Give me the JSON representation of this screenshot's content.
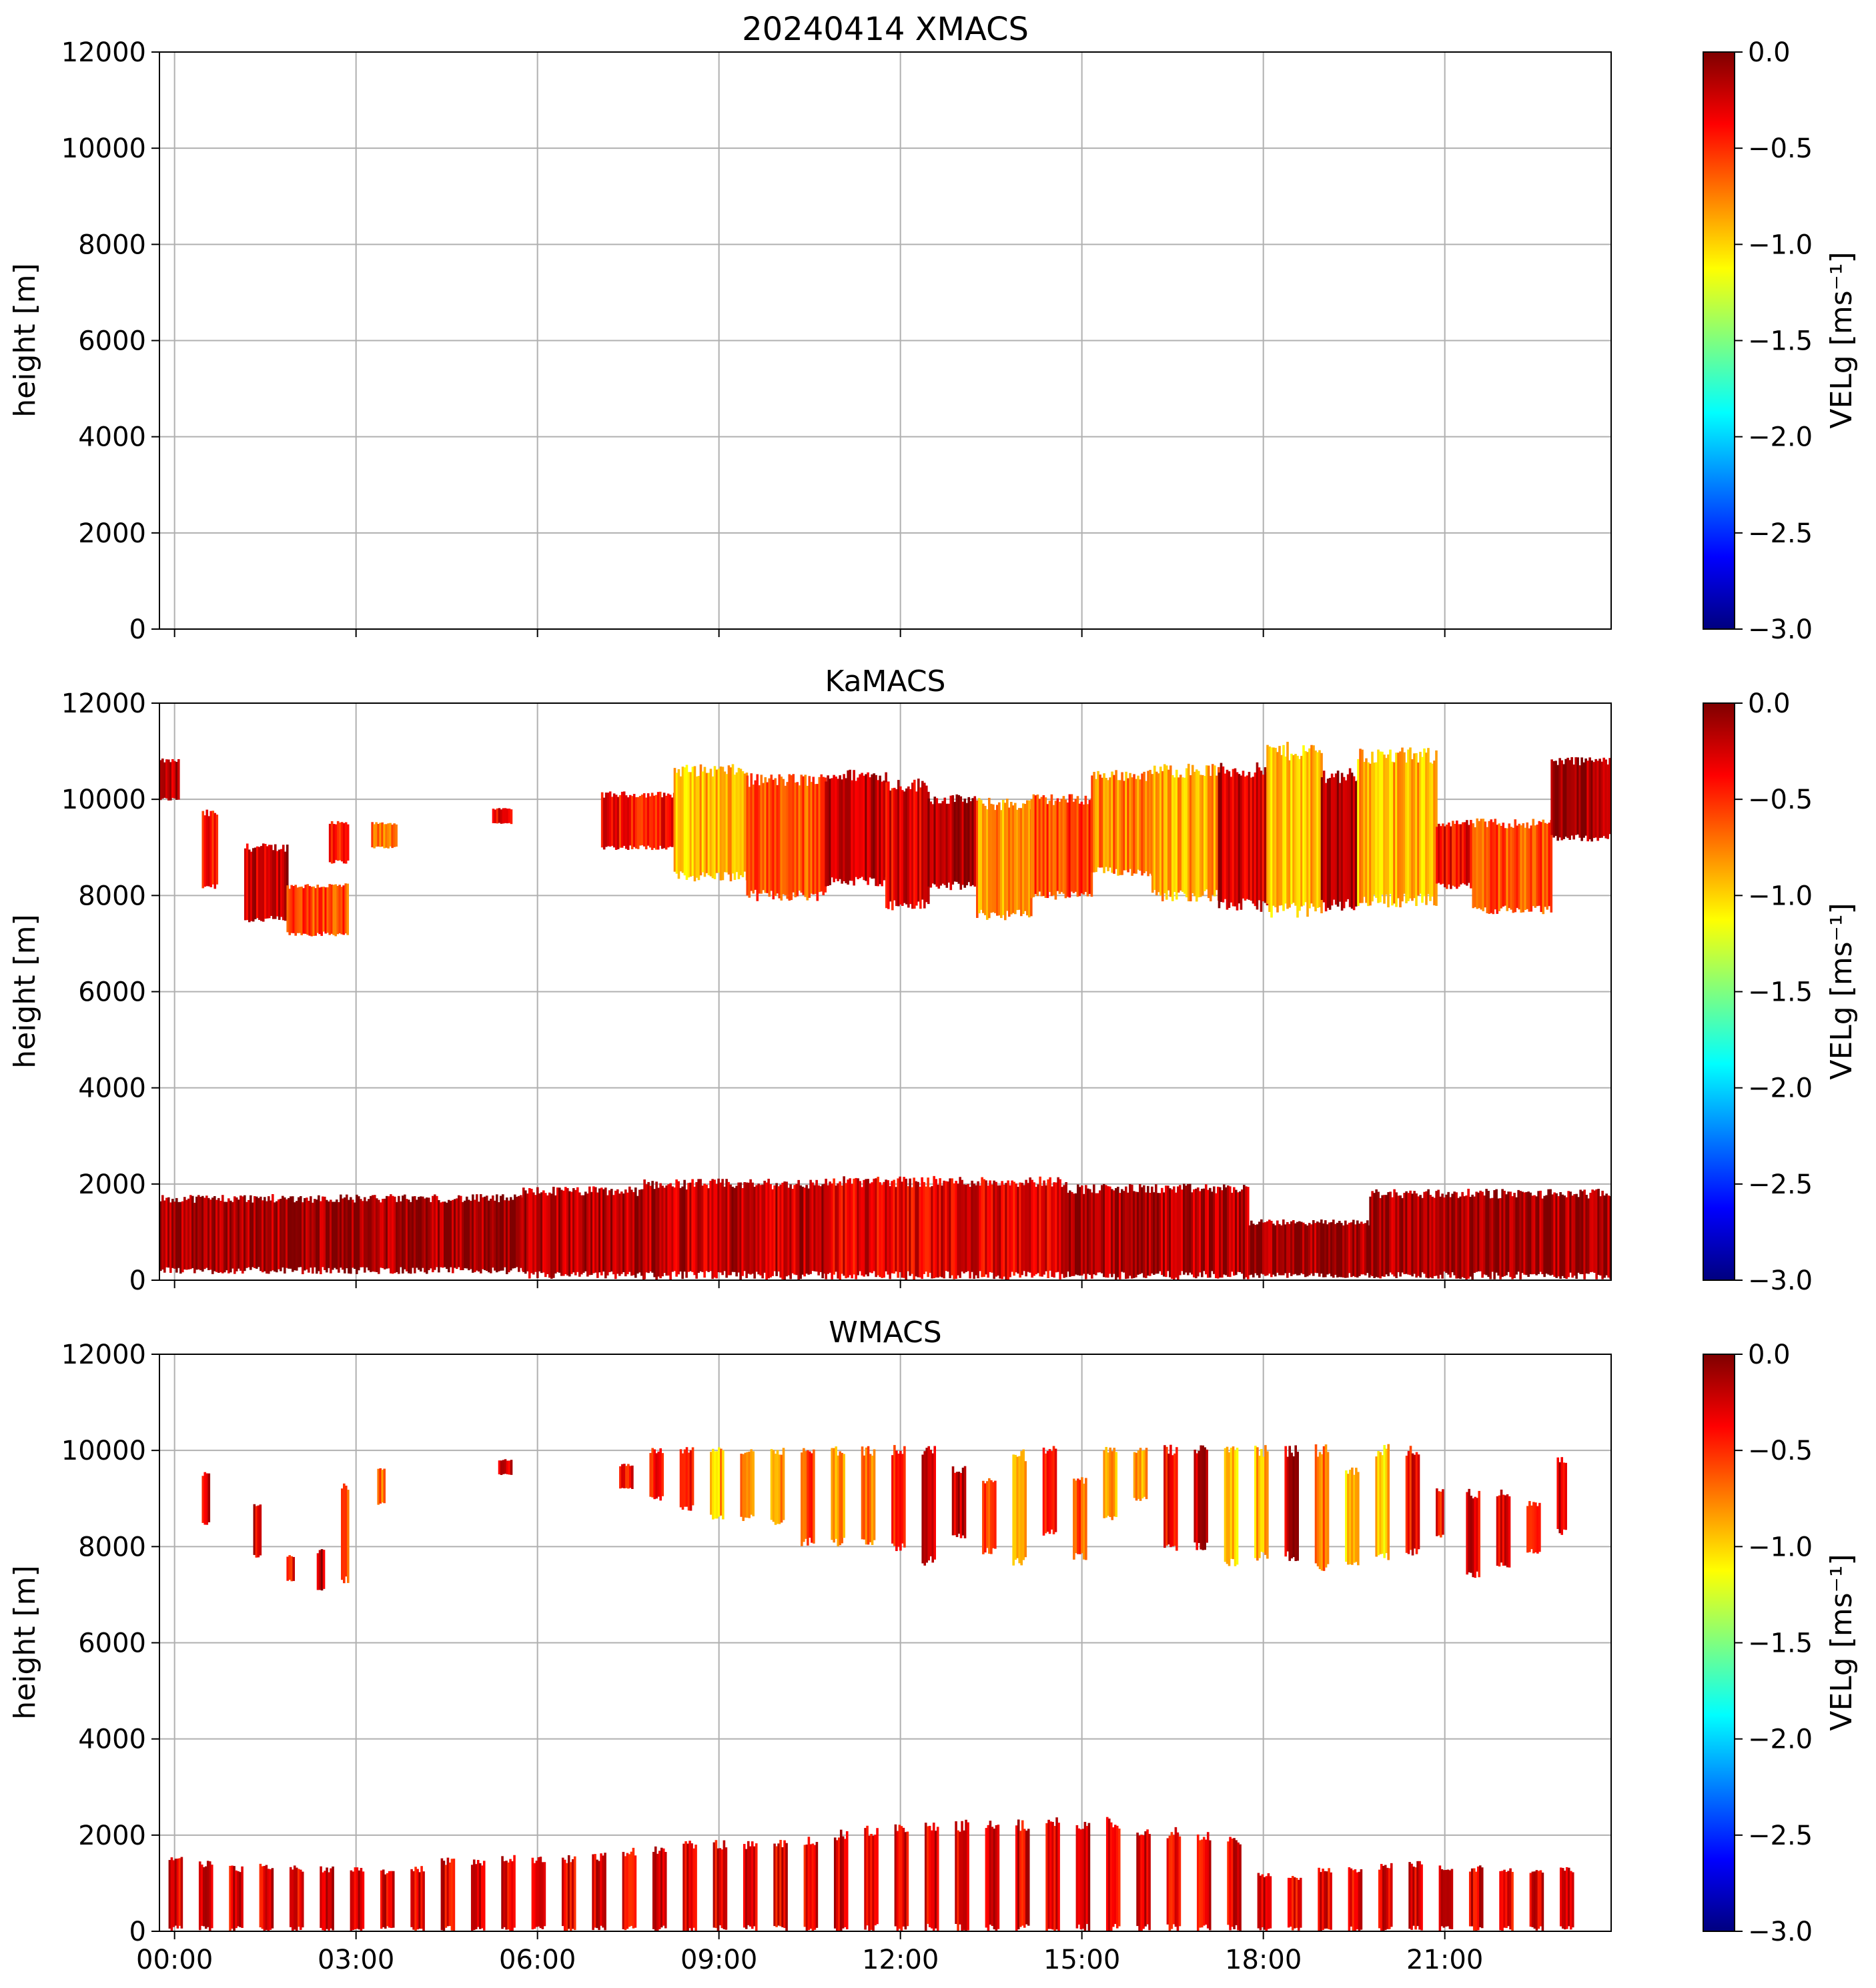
{
  "colors": {
    "jet": [
      "#00007f",
      "#0000ff",
      "#007fff",
      "#00ffff",
      "#7fff7f",
      "#ffff00",
      "#ff7f00",
      "#ff0000",
      "#7f0000"
    ],
    "grid": "#b0b0b0",
    "axis": "#000000"
  },
  "chart_data": [
    {
      "type": "heatmap",
      "title": "20240414 XMACS",
      "ylabel": "height [m]",
      "xlim": [
        0,
        24
      ],
      "ylim": [
        0,
        12000
      ],
      "yticks": [
        0,
        2000,
        4000,
        6000,
        8000,
        10000,
        12000
      ],
      "ytick_labels": [
        "0",
        "2000",
        "4000",
        "6000",
        "8000",
        "10000",
        "12000"
      ],
      "xticks": [
        0.25,
        3.25,
        6.25,
        9.25,
        12.25,
        15.25,
        18.25,
        21.25
      ],
      "grid": true,
      "colorbar": {
        "label": "VELg [ms⁻¹]",
        "range": [
          -3.0,
          0.0
        ],
        "ticks": [
          0.0,
          -0.5,
          -1.0,
          -1.5,
          -2.0,
          -2.5,
          -3.0
        ],
        "tick_labels": [
          "0.0",
          "−0.5",
          "−1.0",
          "−1.5",
          "−2.0",
          "−2.5",
          "−3.0"
        ]
      },
      "echo_regions": []
    },
    {
      "type": "heatmap",
      "title": "KaMACS",
      "ylabel": "height [m]",
      "xlim": [
        0,
        24
      ],
      "ylim": [
        0,
        12000
      ],
      "yticks": [
        0,
        2000,
        4000,
        6000,
        8000,
        10000,
        12000
      ],
      "ytick_labels": [
        "0",
        "2000",
        "4000",
        "6000",
        "8000",
        "10000",
        "12000"
      ],
      "xticks": [
        0.25,
        3.25,
        6.25,
        9.25,
        12.25,
        15.25,
        18.25,
        21.25
      ],
      "grid": true,
      "colorbar": {
        "label": "VELg [ms⁻¹]",
        "range": [
          -3.0,
          0.0
        ],
        "ticks": [
          0.0,
          -0.5,
          -1.0,
          -1.5,
          -2.0,
          -2.5,
          -3.0
        ],
        "tick_labels": [
          "0.0",
          "−0.5",
          "−1.0",
          "−1.5",
          "−2.0",
          "−2.5",
          "−3.0"
        ]
      },
      "echo_regions": [
        {
          "t0": 0.0,
          "t1": 0.3,
          "h0": 10000,
          "h1": 10800,
          "v": -0.2
        },
        {
          "t0": 0.7,
          "t1": 0.95,
          "h0": 8200,
          "h1": 9700,
          "v": -0.4
        },
        {
          "t0": 1.4,
          "t1": 2.1,
          "h0": 7500,
          "h1": 9000,
          "v": -0.2
        },
        {
          "t0": 2.1,
          "t1": 3.1,
          "h0": 7200,
          "h1": 8200,
          "v": -0.6
        },
        {
          "t0": 2.8,
          "t1": 3.1,
          "h0": 8700,
          "h1": 9500,
          "v": -0.5
        },
        {
          "t0": 3.5,
          "t1": 3.9,
          "h0": 9000,
          "h1": 9500,
          "v": -0.7
        },
        {
          "t0": 5.5,
          "t1": 5.8,
          "h0": 9500,
          "h1": 9800,
          "v": -0.3
        },
        {
          "t0": 7.3,
          "t1": 9.0,
          "h0": 9000,
          "h1": 10100,
          "v": -0.4
        },
        {
          "t0": 8.5,
          "t1": 9.7,
          "h0": 8400,
          "h1": 10600,
          "v": -0.9
        },
        {
          "t0": 9.7,
          "t1": 11.0,
          "h0": 8000,
          "h1": 10400,
          "v": -0.65
        },
        {
          "t0": 11.0,
          "t1": 12.0,
          "h0": 8300,
          "h1": 10500,
          "v": -0.15
        },
        {
          "t0": 12.0,
          "t1": 12.7,
          "h0": 7800,
          "h1": 10300,
          "v": -0.3
        },
        {
          "t0": 12.7,
          "t1": 13.5,
          "h0": 8200,
          "h1": 10000,
          "v": -0.1
        },
        {
          "t0": 13.5,
          "t1": 14.4,
          "h0": 7600,
          "h1": 9900,
          "v": -0.8
        },
        {
          "t0": 14.4,
          "t1": 15.4,
          "h0": 8000,
          "h1": 10000,
          "v": -0.55
        },
        {
          "t0": 15.4,
          "t1": 16.4,
          "h0": 8500,
          "h1": 10500,
          "v": -0.75
        },
        {
          "t0": 16.4,
          "t1": 17.5,
          "h0": 8000,
          "h1": 10600,
          "v": -0.85
        },
        {
          "t0": 17.5,
          "t1": 18.3,
          "h0": 7800,
          "h1": 10600,
          "v": -0.25
        },
        {
          "t0": 18.3,
          "t1": 19.2,
          "h0": 7700,
          "h1": 11000,
          "v": -0.95
        },
        {
          "t0": 19.2,
          "t1": 19.8,
          "h0": 7800,
          "h1": 10500,
          "v": -0.15
        },
        {
          "t0": 19.8,
          "t1": 21.1,
          "h0": 7900,
          "h1": 10900,
          "v": -0.9
        },
        {
          "t0": 21.1,
          "t1": 21.7,
          "h0": 8200,
          "h1": 9500,
          "v": -0.35
        },
        {
          "t0": 21.7,
          "t1": 23.0,
          "h0": 7700,
          "h1": 9500,
          "v": -0.6
        },
        {
          "t0": 23.0,
          "t1": 24.0,
          "h0": 9200,
          "h1": 10800,
          "v": -0.1
        },
        {
          "t0": 0.0,
          "t1": 6.0,
          "h0": 200,
          "h1": 1700,
          "v": -0.1
        },
        {
          "t0": 6.0,
          "t1": 8.0,
          "h0": 100,
          "h1": 1850,
          "v": -0.15
        },
        {
          "t0": 8.0,
          "t1": 11.0,
          "h0": 100,
          "h1": 2000,
          "v": -0.2
        },
        {
          "t0": 11.0,
          "t1": 15.0,
          "h0": 100,
          "h1": 2050,
          "v": -0.3
        },
        {
          "t0": 15.0,
          "t1": 18.0,
          "h0": 100,
          "h1": 1900,
          "v": -0.15
        },
        {
          "t0": 18.0,
          "t1": 20.0,
          "h0": 100,
          "h1": 1200,
          "v": -0.1
        },
        {
          "t0": 20.0,
          "t1": 24.0,
          "h0": 100,
          "h1": 1800,
          "v": -0.1
        }
      ]
    },
    {
      "type": "heatmap",
      "title": "WMACS",
      "ylabel": "height [m]",
      "xlim": [
        0,
        24
      ],
      "ylim": [
        0,
        12000
      ],
      "yticks": [
        0,
        2000,
        4000,
        6000,
        8000,
        10000,
        12000
      ],
      "ytick_labels": [
        "0",
        "2000",
        "4000",
        "6000",
        "8000",
        "10000",
        "12000"
      ],
      "xticks": [
        0.25,
        3.25,
        6.25,
        9.25,
        12.25,
        15.25,
        18.25,
        21.25
      ],
      "xtick_labels": [
        "00:00",
        "03:00",
        "06:00",
        "09:00",
        "12:00",
        "15:00",
        "18:00",
        "21:00"
      ],
      "grid": true,
      "colorbar": {
        "label": "VELg [ms⁻¹]",
        "range": [
          -3.0,
          0.0
        ],
        "ticks": [
          0.0,
          -0.5,
          -1.0,
          -1.5,
          -2.0,
          -2.5,
          -3.0
        ],
        "tick_labels": [
          "0.0",
          "−0.5",
          "−1.0",
          "−1.5",
          "−2.0",
          "−2.5",
          "−3.0"
        ]
      },
      "echo_regions": [
        {
          "t0": 0.7,
          "t1": 0.8,
          "h0": 8500,
          "h1": 9500,
          "v": -0.3
        },
        {
          "t0": 1.55,
          "t1": 1.65,
          "h0": 7800,
          "h1": 8900,
          "v": -0.3
        },
        {
          "t0": 2.1,
          "t1": 2.2,
          "h0": 7300,
          "h1": 7800,
          "v": -0.4
        },
        {
          "t0": 2.6,
          "t1": 2.7,
          "h0": 7100,
          "h1": 7900,
          "v": -0.2
        },
        {
          "t0": 3.0,
          "t1": 3.1,
          "h0": 7300,
          "h1": 9300,
          "v": -0.6
        },
        {
          "t0": 3.6,
          "t1": 3.7,
          "h0": 8900,
          "h1": 9600,
          "v": -0.7
        },
        {
          "t0": 5.6,
          "t1": 5.8,
          "h0": 9500,
          "h1": 9800,
          "v": -0.3
        },
        {
          "t0": 7.6,
          "t1": 7.8,
          "h0": 9200,
          "h1": 9700,
          "v": -0.4
        },
        {
          "t0": 8.1,
          "t1": 8.3,
          "h0": 9000,
          "h1": 10000,
          "v": -0.35
        },
        {
          "t0": 8.6,
          "t1": 8.8,
          "h0": 8800,
          "h1": 10000,
          "v": -0.45
        },
        {
          "t0": 9.1,
          "t1": 9.3,
          "h0": 8600,
          "h1": 10000,
          "v": -0.9
        },
        {
          "t0": 9.6,
          "t1": 9.8,
          "h0": 8600,
          "h1": 10000,
          "v": -0.75
        },
        {
          "t0": 10.1,
          "t1": 10.3,
          "h0": 8500,
          "h1": 10000,
          "v": -0.8
        },
        {
          "t0": 10.6,
          "t1": 10.8,
          "h0": 8100,
          "h1": 10000,
          "v": -0.55
        },
        {
          "t0": 11.1,
          "t1": 11.3,
          "h0": 8100,
          "h1": 10000,
          "v": -0.85
        },
        {
          "t0": 11.6,
          "t1": 11.8,
          "h0": 8100,
          "h1": 10000,
          "v": -0.7
        },
        {
          "t0": 12.1,
          "t1": 12.3,
          "h0": 8000,
          "h1": 10000,
          "v": -0.4
        },
        {
          "t0": 12.6,
          "t1": 12.8,
          "h0": 7700,
          "h1": 10000,
          "v": -0.15
        },
        {
          "t0": 13.1,
          "t1": 13.3,
          "h0": 8200,
          "h1": 9600,
          "v": -0.2
        },
        {
          "t0": 13.6,
          "t1": 13.8,
          "h0": 7900,
          "h1": 9400,
          "v": -0.6
        },
        {
          "t0": 14.1,
          "t1": 14.3,
          "h0": 7700,
          "h1": 9900,
          "v": -0.8
        },
        {
          "t0": 14.6,
          "t1": 14.8,
          "h0": 8300,
          "h1": 10000,
          "v": -0.5
        },
        {
          "t0": 15.1,
          "t1": 15.3,
          "h0": 7800,
          "h1": 9400,
          "v": -0.65
        },
        {
          "t0": 15.6,
          "t1": 15.8,
          "h0": 8600,
          "h1": 10000,
          "v": -0.85
        },
        {
          "t0": 16.1,
          "t1": 16.3,
          "h0": 9000,
          "h1": 10000,
          "v": -0.9
        },
        {
          "t0": 16.6,
          "t1": 16.8,
          "h0": 8000,
          "h1": 10000,
          "v": -0.35
        },
        {
          "t0": 17.1,
          "t1": 17.3,
          "h0": 8000,
          "h1": 10000,
          "v": -0.15
        },
        {
          "t0": 17.6,
          "t1": 17.8,
          "h0": 7700,
          "h1": 10000,
          "v": -0.95
        },
        {
          "t0": 18.1,
          "t1": 18.3,
          "h0": 7800,
          "h1": 10000,
          "v": -0.9
        },
        {
          "t0": 18.6,
          "t1": 18.8,
          "h0": 7800,
          "h1": 10000,
          "v": -0.2
        },
        {
          "t0": 19.1,
          "t1": 19.3,
          "h0": 7600,
          "h1": 10000,
          "v": -0.7
        },
        {
          "t0": 19.6,
          "t1": 19.8,
          "h0": 7600,
          "h1": 9600,
          "v": -0.95
        },
        {
          "t0": 20.1,
          "t1": 20.3,
          "h0": 7800,
          "h1": 10000,
          "v": -1.0
        },
        {
          "t0": 20.6,
          "t1": 20.8,
          "h0": 7900,
          "h1": 10000,
          "v": -0.35
        },
        {
          "t0": 21.1,
          "t1": 21.2,
          "h0": 8200,
          "h1": 9200,
          "v": -0.4
        },
        {
          "t0": 21.6,
          "t1": 21.8,
          "h0": 7400,
          "h1": 9100,
          "v": -0.3
        },
        {
          "t0": 22.1,
          "t1": 22.3,
          "h0": 7600,
          "h1": 9100,
          "v": -0.25
        },
        {
          "t0": 22.6,
          "t1": 22.8,
          "h0": 7900,
          "h1": 8900,
          "v": -0.5
        },
        {
          "t0": 23.1,
          "t1": 23.25,
          "h0": 8300,
          "h1": 9800,
          "v": -0.3
        }
      ],
      "boundary_layer_columns": {
        "start": 0.0,
        "step": 0.5,
        "width": 0.2,
        "tops": [
          1500,
          1400,
          1300,
          1350,
          1300,
          1300,
          1300,
          1250,
          1300,
          1450,
          1450,
          1500,
          1500,
          1500,
          1550,
          1650,
          1700,
          1800,
          1800,
          1800,
          1800,
          1900,
          2000,
          2100,
          2100,
          2150,
          2200,
          2250,
          2200,
          2250,
          2250,
          2250,
          2100,
          2050,
          2000,
          1900,
          1150,
          1100,
          1250,
          1300,
          1350,
          1400,
          1300,
          1300,
          1250,
          1250,
          1300
        ]
      }
    }
  ]
}
